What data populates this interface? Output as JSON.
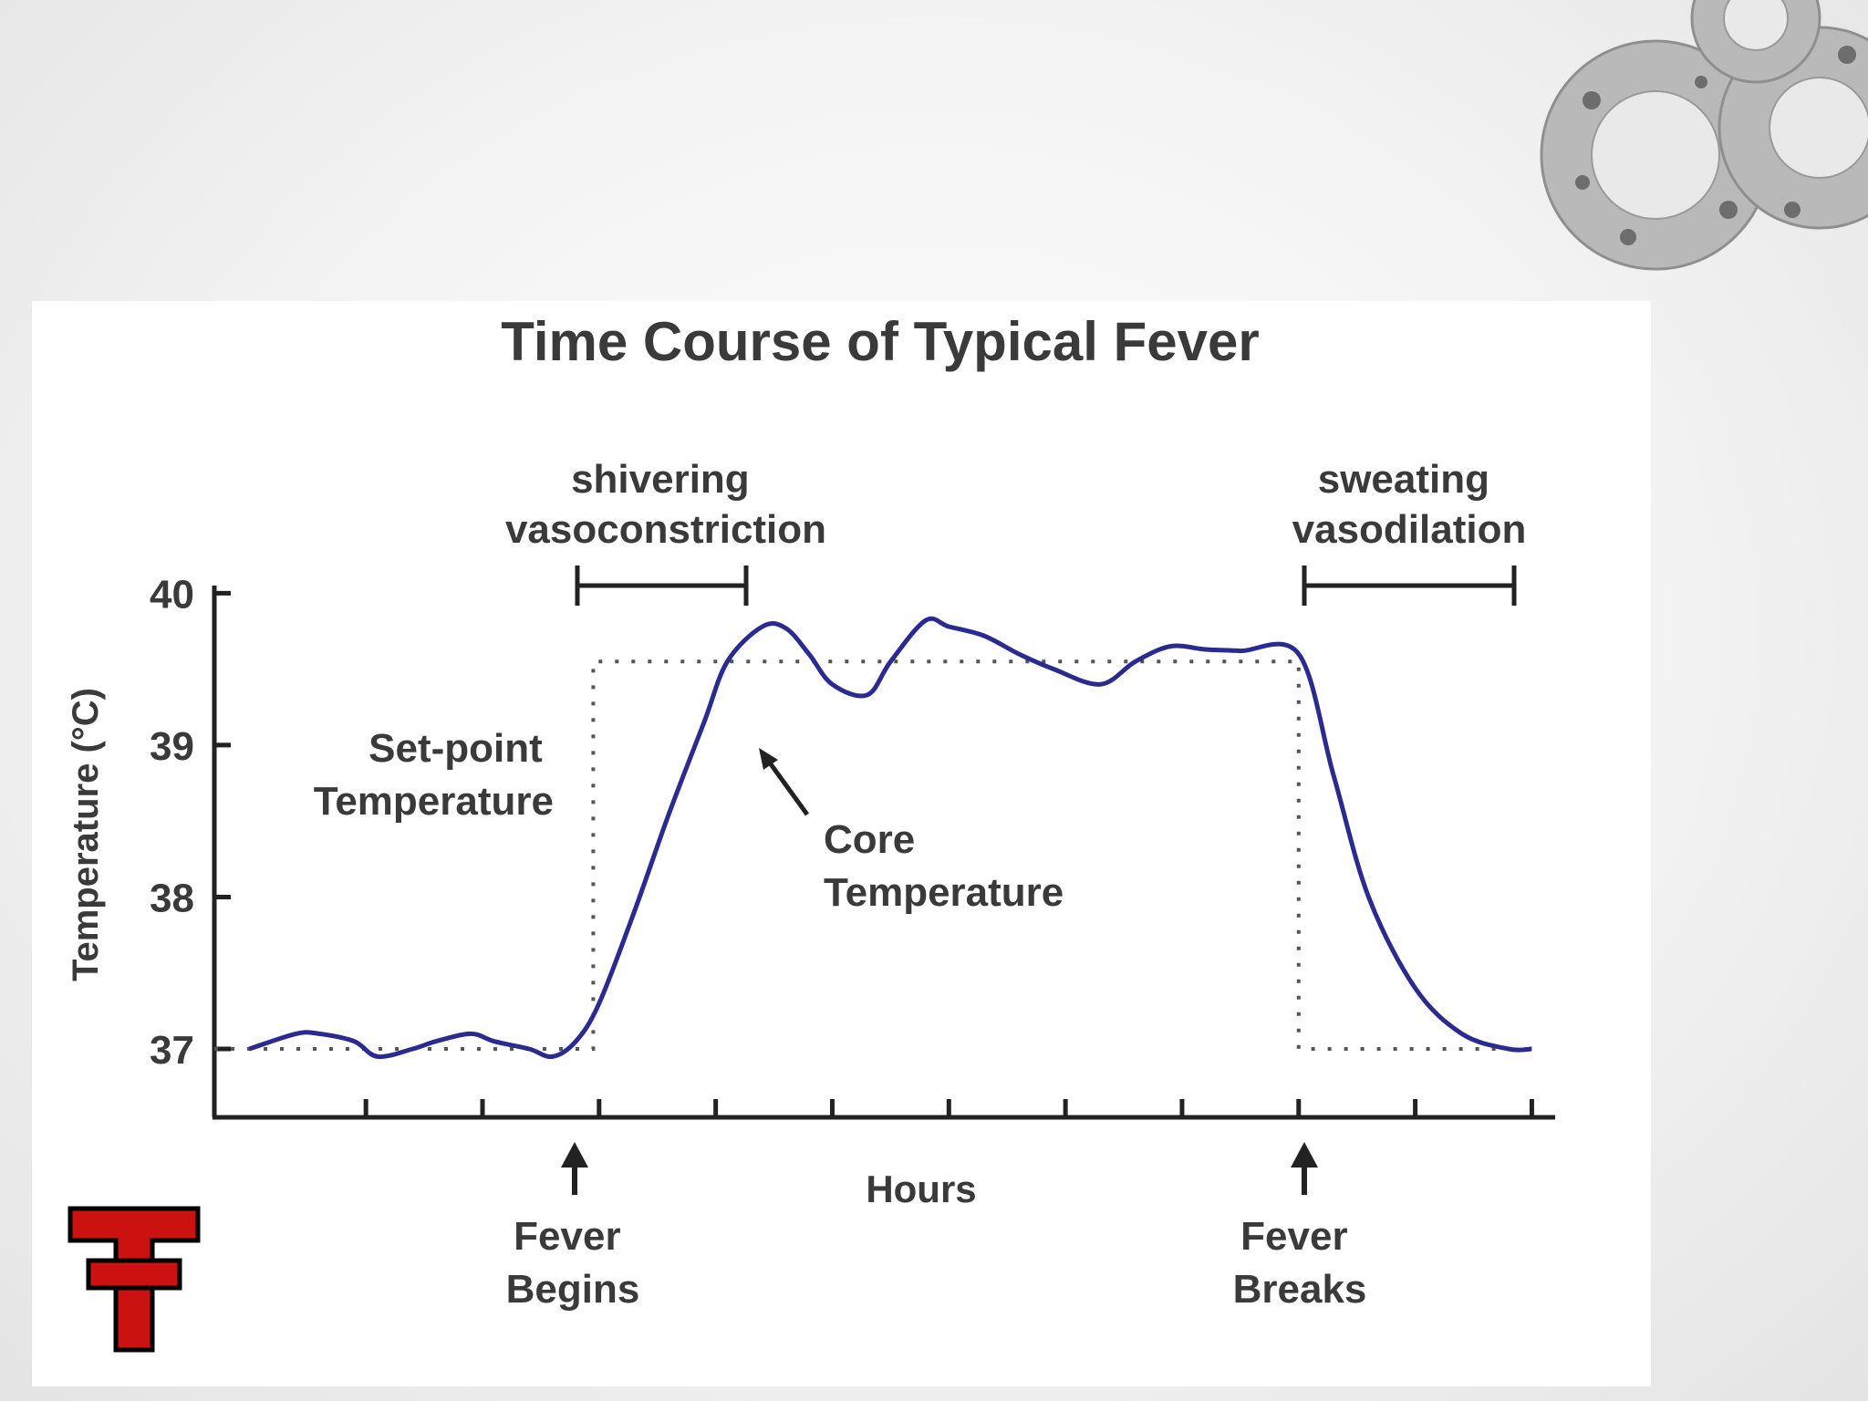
{
  "chart_data": {
    "type": "line",
    "title": "Time Course of Typical Fever",
    "xlabel": "Hours",
    "ylabel": "Temperature (°C)",
    "ylim": [
      36.55,
      40.05
    ],
    "xlim": [
      -0.3,
      11.2
    ],
    "yticks": [
      37,
      38,
      39,
      40
    ],
    "xticks": [
      1,
      2,
      3,
      4,
      5,
      6,
      7,
      8,
      9,
      10,
      11
    ],
    "grid": false,
    "legend": "none",
    "series": [
      {
        "role": "core",
        "x": [
          0,
          0.4,
          0.6,
          0.9,
          1.1,
          1.4,
          1.6,
          1.9,
          2.1,
          2.4,
          2.6,
          2.8,
          3.0,
          3.3,
          3.6,
          3.9,
          4.1,
          4.4,
          4.6,
          4.8,
          5.0,
          5.3,
          5.5,
          5.8,
          6.0,
          6.3,
          6.6,
          6.9,
          7.3,
          7.6,
          7.9,
          8.2,
          8.5,
          9.0,
          9.3,
          9.6,
          10.0,
          10.4,
          10.8,
          11.0
        ],
        "y": [
          37.0,
          37.1,
          37.1,
          37.05,
          36.95,
          37.0,
          37.05,
          37.1,
          37.05,
          37.0,
          36.95,
          37.05,
          37.3,
          37.9,
          38.55,
          39.15,
          39.55,
          39.78,
          39.77,
          39.6,
          39.4,
          39.33,
          39.55,
          39.82,
          39.78,
          39.72,
          39.6,
          39.5,
          39.4,
          39.55,
          39.65,
          39.63,
          39.62,
          39.6,
          38.8,
          38.0,
          37.4,
          37.1,
          37.0,
          37.0
        ]
      },
      {
        "role": "set-point",
        "x": [
          -0.3,
          2.95,
          2.95,
          9.0,
          9.0,
          11.0
        ],
        "y": [
          37.0,
          37.0,
          39.55,
          39.55,
          37.0,
          37.0
        ]
      }
    ],
    "annotations": {
      "set_point": [
        "Set-point",
        "Temperature"
      ],
      "core": [
        "Core",
        "Temperature"
      ],
      "shivering": [
        "shivering",
        "vasoconstriction"
      ],
      "sweating": [
        "sweating",
        "vasodilation"
      ],
      "fever_begins": [
        "Fever",
        "Begins"
      ],
      "fever_breaks": [
        "Fever",
        "Breaks"
      ]
    },
    "colors": {
      "core": "#2b2b8f",
      "set_point": "#555555",
      "axis": "#222222",
      "text": "#3a3a3a"
    }
  },
  "decor": {
    "top_right": "gears-graphic",
    "bottom_left": "double-T-logo",
    "logo_color": "#cc1111"
  }
}
